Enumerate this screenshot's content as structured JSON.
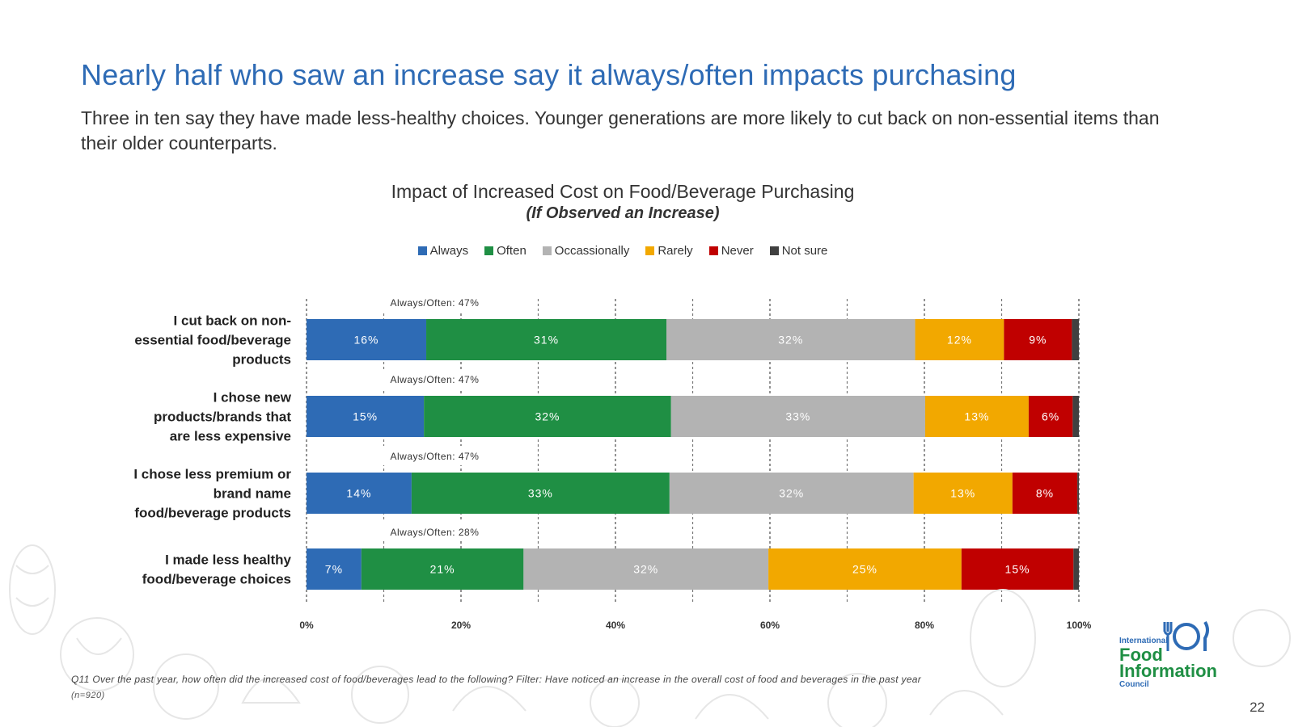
{
  "page": {
    "title": "Nearly half who saw an increase say it always/often impacts purchasing",
    "subtitle": "Three in ten say they have made less-healthy choices. Younger generations are more likely to cut back on non-essential items than their older counterparts.",
    "footnote": "Q11  Over the past year, how often did the increased cost of food/beverages  lead to the following? Filter:  Have noticed an increase in the overall cost of food and beverages  in the past year",
    "footnote_n": "(n=920)",
    "page_number": "22"
  },
  "logo": {
    "line1": "International",
    "line2": "Food",
    "line3": "Information",
    "line4": "Council",
    "icon": "fork-plate-knife-icon"
  },
  "chart_data": {
    "type": "bar",
    "orientation": "horizontal",
    "stacked": true,
    "title": "Impact of Increased Cost on Food/Beverage Purchasing",
    "subtitle": "(If Observed an Increase)",
    "xlim": [
      0,
      100
    ],
    "x_ticks": [
      "0%",
      "20%",
      "40%",
      "60%",
      "80%",
      "100%"
    ],
    "grid": true,
    "legend_position": "top",
    "categories": [
      "I cut back on non-essential food/beverage products",
      "I chose new products/brands that are less expensive",
      "I chose less premium or brand name food/beverage products",
      "I made less healthy food/beverage choices"
    ],
    "category_lines": [
      [
        "I cut back on non-",
        "essential food/beverage",
        "products"
      ],
      [
        "I chose new",
        "products/brands that",
        "are less expensive"
      ],
      [
        "I chose less premium or",
        "brand name",
        "food/beverage products"
      ],
      [
        "I made less healthy",
        "food/beverage choices"
      ]
    ],
    "series": [
      {
        "name": "Always",
        "color": "#2e6bb5",
        "values": [
          15.5,
          15.2,
          13.6,
          7.1
        ],
        "labels": [
          "16%",
          "15%",
          "14%",
          "7%"
        ]
      },
      {
        "name": "Often",
        "color": "#1f8f44",
        "values": [
          31.1,
          32.0,
          33.4,
          21.0
        ],
        "labels": [
          "31%",
          "32%",
          "33%",
          "21%"
        ]
      },
      {
        "name": "Occassionally",
        "color": "#b3b3b3",
        "values": [
          32.2,
          32.9,
          31.6,
          31.7
        ],
        "labels": [
          "32%",
          "33%",
          "32%",
          "32%"
        ]
      },
      {
        "name": "Rarely",
        "color": "#f2a800",
        "values": [
          11.5,
          13.4,
          12.8,
          25.0
        ],
        "labels": [
          "12%",
          "13%",
          "13%",
          "25%"
        ]
      },
      {
        "name": "Never",
        "color": "#c00000",
        "values": [
          8.8,
          5.7,
          8.4,
          14.5
        ],
        "labels": [
          "9%",
          "6%",
          "8%",
          "15%"
        ]
      },
      {
        "name": "Not sure",
        "color": "#404040",
        "values": [
          0.9,
          0.8,
          0.2,
          0.7
        ],
        "labels": [
          "",
          "",
          "",
          ""
        ]
      }
    ],
    "annotations": [
      "Always/Often: 47%",
      "Always/Often: 47%",
      "Always/Often: 47%",
      "Always/Often: 28%"
    ]
  }
}
